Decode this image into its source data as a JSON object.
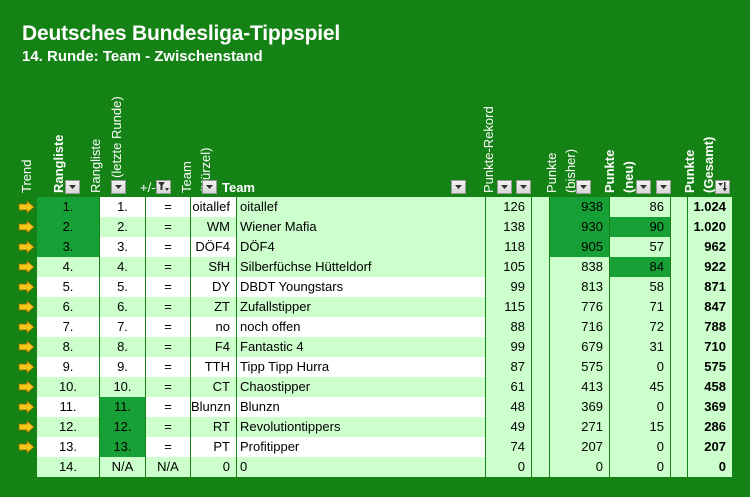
{
  "title": "Deutsches Bundesliga-Tippspiel",
  "subtitle": "14. Runde: Team - Zwischenstand",
  "colors": {
    "background": "#158215",
    "light_green": "#ccffcc",
    "dark_green": "#17a035",
    "white": "#ffffff",
    "trend_arrow": "#f5c518"
  },
  "headers": {
    "trend": "Trend",
    "rangliste": "Rangliste",
    "rangliste_letzte": "Rangliste",
    "rangliste_letzte_sub": "(letzte Runde)",
    "plusminus": "+/-",
    "team_kuerzel": "Team",
    "team_kuerzel_sub": "(Kürzel)",
    "team": "Team",
    "punkte_rekord": "Punkte-Rekord",
    "punkte_bisher": "Punkte",
    "punkte_bisher_sub": "(bisher)",
    "punkte_neu": "Punkte",
    "punkte_neu_sub": "(neu)",
    "punkte_gesamt": "Punkte",
    "punkte_gesamt_sub": "(Gesamt)"
  },
  "rows": [
    {
      "trend": "arrow-right-icon",
      "rank": "1.",
      "last": "1.",
      "pm": "=",
      "abbr": "oitallef",
      "team": "oitallef",
      "rekord": "126",
      "bisher": "938",
      "neu": "86",
      "gesamt": "1.024"
    },
    {
      "trend": "arrow-right-icon",
      "rank": "2.",
      "last": "2.",
      "pm": "=",
      "abbr": "WM",
      "team": "Wiener Mafia",
      "rekord": "138",
      "bisher": "930",
      "neu": "90",
      "gesamt": "1.020"
    },
    {
      "trend": "arrow-right-icon",
      "rank": "3.",
      "last": "3.",
      "pm": "=",
      "abbr": "DÖF4",
      "team": "DÖF4",
      "rekord": "118",
      "bisher": "905",
      "neu": "57",
      "gesamt": "962"
    },
    {
      "trend": "arrow-right-icon",
      "rank": "4.",
      "last": "4.",
      "pm": "=",
      "abbr": "SfH",
      "team": "Silberfüchse Hütteldorf",
      "rekord": "105",
      "bisher": "838",
      "neu": "84",
      "gesamt": "922"
    },
    {
      "trend": "arrow-right-icon",
      "rank": "5.",
      "last": "5.",
      "pm": "=",
      "abbr": "DY",
      "team": "DBDT Youngstars",
      "rekord": "99",
      "bisher": "813",
      "neu": "58",
      "gesamt": "871"
    },
    {
      "trend": "arrow-right-icon",
      "rank": "6.",
      "last": "6.",
      "pm": "=",
      "abbr": "ZT",
      "team": "Zufallstipper",
      "rekord": "115",
      "bisher": "776",
      "neu": "71",
      "gesamt": "847"
    },
    {
      "trend": "arrow-right-icon",
      "rank": "7.",
      "last": "7.",
      "pm": "=",
      "abbr": "no",
      "team": "noch offen",
      "rekord": "88",
      "bisher": "716",
      "neu": "72",
      "gesamt": "788"
    },
    {
      "trend": "arrow-right-icon",
      "rank": "8.",
      "last": "8.",
      "pm": "=",
      "abbr": "F4",
      "team": "Fantastic 4",
      "rekord": "99",
      "bisher": "679",
      "neu": "31",
      "gesamt": "710"
    },
    {
      "trend": "arrow-right-icon",
      "rank": "9.",
      "last": "9.",
      "pm": "=",
      "abbr": "TTH",
      "team": "Tipp Tipp Hurra",
      "rekord": "87",
      "bisher": "575",
      "neu": "0",
      "gesamt": "575"
    },
    {
      "trend": "arrow-right-icon",
      "rank": "10.",
      "last": "10.",
      "pm": "=",
      "abbr": "CT",
      "team": "Chaostipper",
      "rekord": "61",
      "bisher": "413",
      "neu": "45",
      "gesamt": "458"
    },
    {
      "trend": "arrow-right-icon",
      "rank": "11.",
      "last": "11.",
      "pm": "=",
      "abbr": "Blunzn",
      "team": "Blunzn",
      "rekord": "48",
      "bisher": "369",
      "neu": "0",
      "gesamt": "369"
    },
    {
      "trend": "arrow-right-icon",
      "rank": "12.",
      "last": "12.",
      "pm": "=",
      "abbr": "RT",
      "team": "Revolutiontippers",
      "rekord": "49",
      "bisher": "271",
      "neu": "15",
      "gesamt": "286"
    },
    {
      "trend": "arrow-right-icon",
      "rank": "13.",
      "last": "13.",
      "pm": "=",
      "abbr": "PT",
      "team": "Profitipper",
      "rekord": "74",
      "bisher": "207",
      "neu": "0",
      "gesamt": "207"
    },
    {
      "trend": "",
      "rank": "14.",
      "last": "N/A",
      "pm": "N/A",
      "abbr": "0",
      "team": "0",
      "rekord": "0",
      "bisher": "0",
      "neu": "0",
      "gesamt": "0"
    }
  ]
}
